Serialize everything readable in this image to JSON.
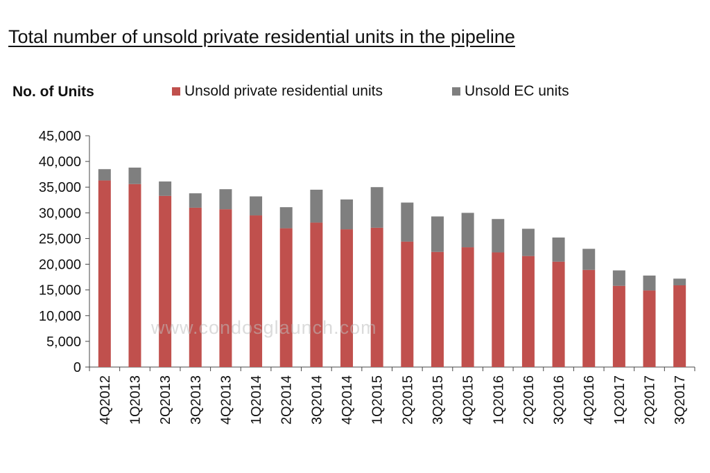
{
  "watermark": "www.condosglaunch.com",
  "colors": {
    "private": "#C0504D",
    "ec": "#7F7F7F"
  },
  "chart_data": {
    "type": "bar",
    "stacked": true,
    "title": "Total number of unsold private residential units in the pipeline",
    "ylabel": "No. of Units",
    "xlabel": "",
    "ylim": [
      0,
      45000
    ],
    "yticks": [
      0,
      5000,
      10000,
      15000,
      20000,
      25000,
      30000,
      35000,
      40000,
      45000
    ],
    "ytick_labels": [
      "0",
      "5,000",
      "10,000",
      "15,000",
      "20,000",
      "25,000",
      "30,000",
      "35,000",
      "40,000",
      "45,000"
    ],
    "grid": false,
    "legend_position": "top",
    "categories": [
      "4Q2012",
      "1Q2013",
      "2Q2013",
      "3Q2013",
      "4Q2013",
      "1Q2014",
      "2Q2014",
      "3Q2014",
      "4Q2014",
      "1Q2015",
      "2Q2015",
      "3Q2015",
      "4Q2015",
      "1Q2016",
      "2Q2016",
      "3Q2016",
      "4Q2016",
      "1Q2017",
      "2Q2017",
      "3Q2017"
    ],
    "series": [
      {
        "name": "Unsold private residential units",
        "values": [
          36300,
          35600,
          33300,
          31000,
          30700,
          29500,
          27000,
          28100,
          26800,
          27100,
          24400,
          22400,
          23300,
          22300,
          21600,
          20500,
          18900,
          15800,
          14900,
          15900
        ]
      },
      {
        "name": "Unsold EC units",
        "values": [
          2200,
          3200,
          2800,
          2800,
          3900,
          3700,
          4100,
          6400,
          5800,
          7900,
          7600,
          6900,
          6700,
          6500,
          5300,
          4700,
          4100,
          3000,
          2900,
          1300
        ]
      }
    ]
  }
}
